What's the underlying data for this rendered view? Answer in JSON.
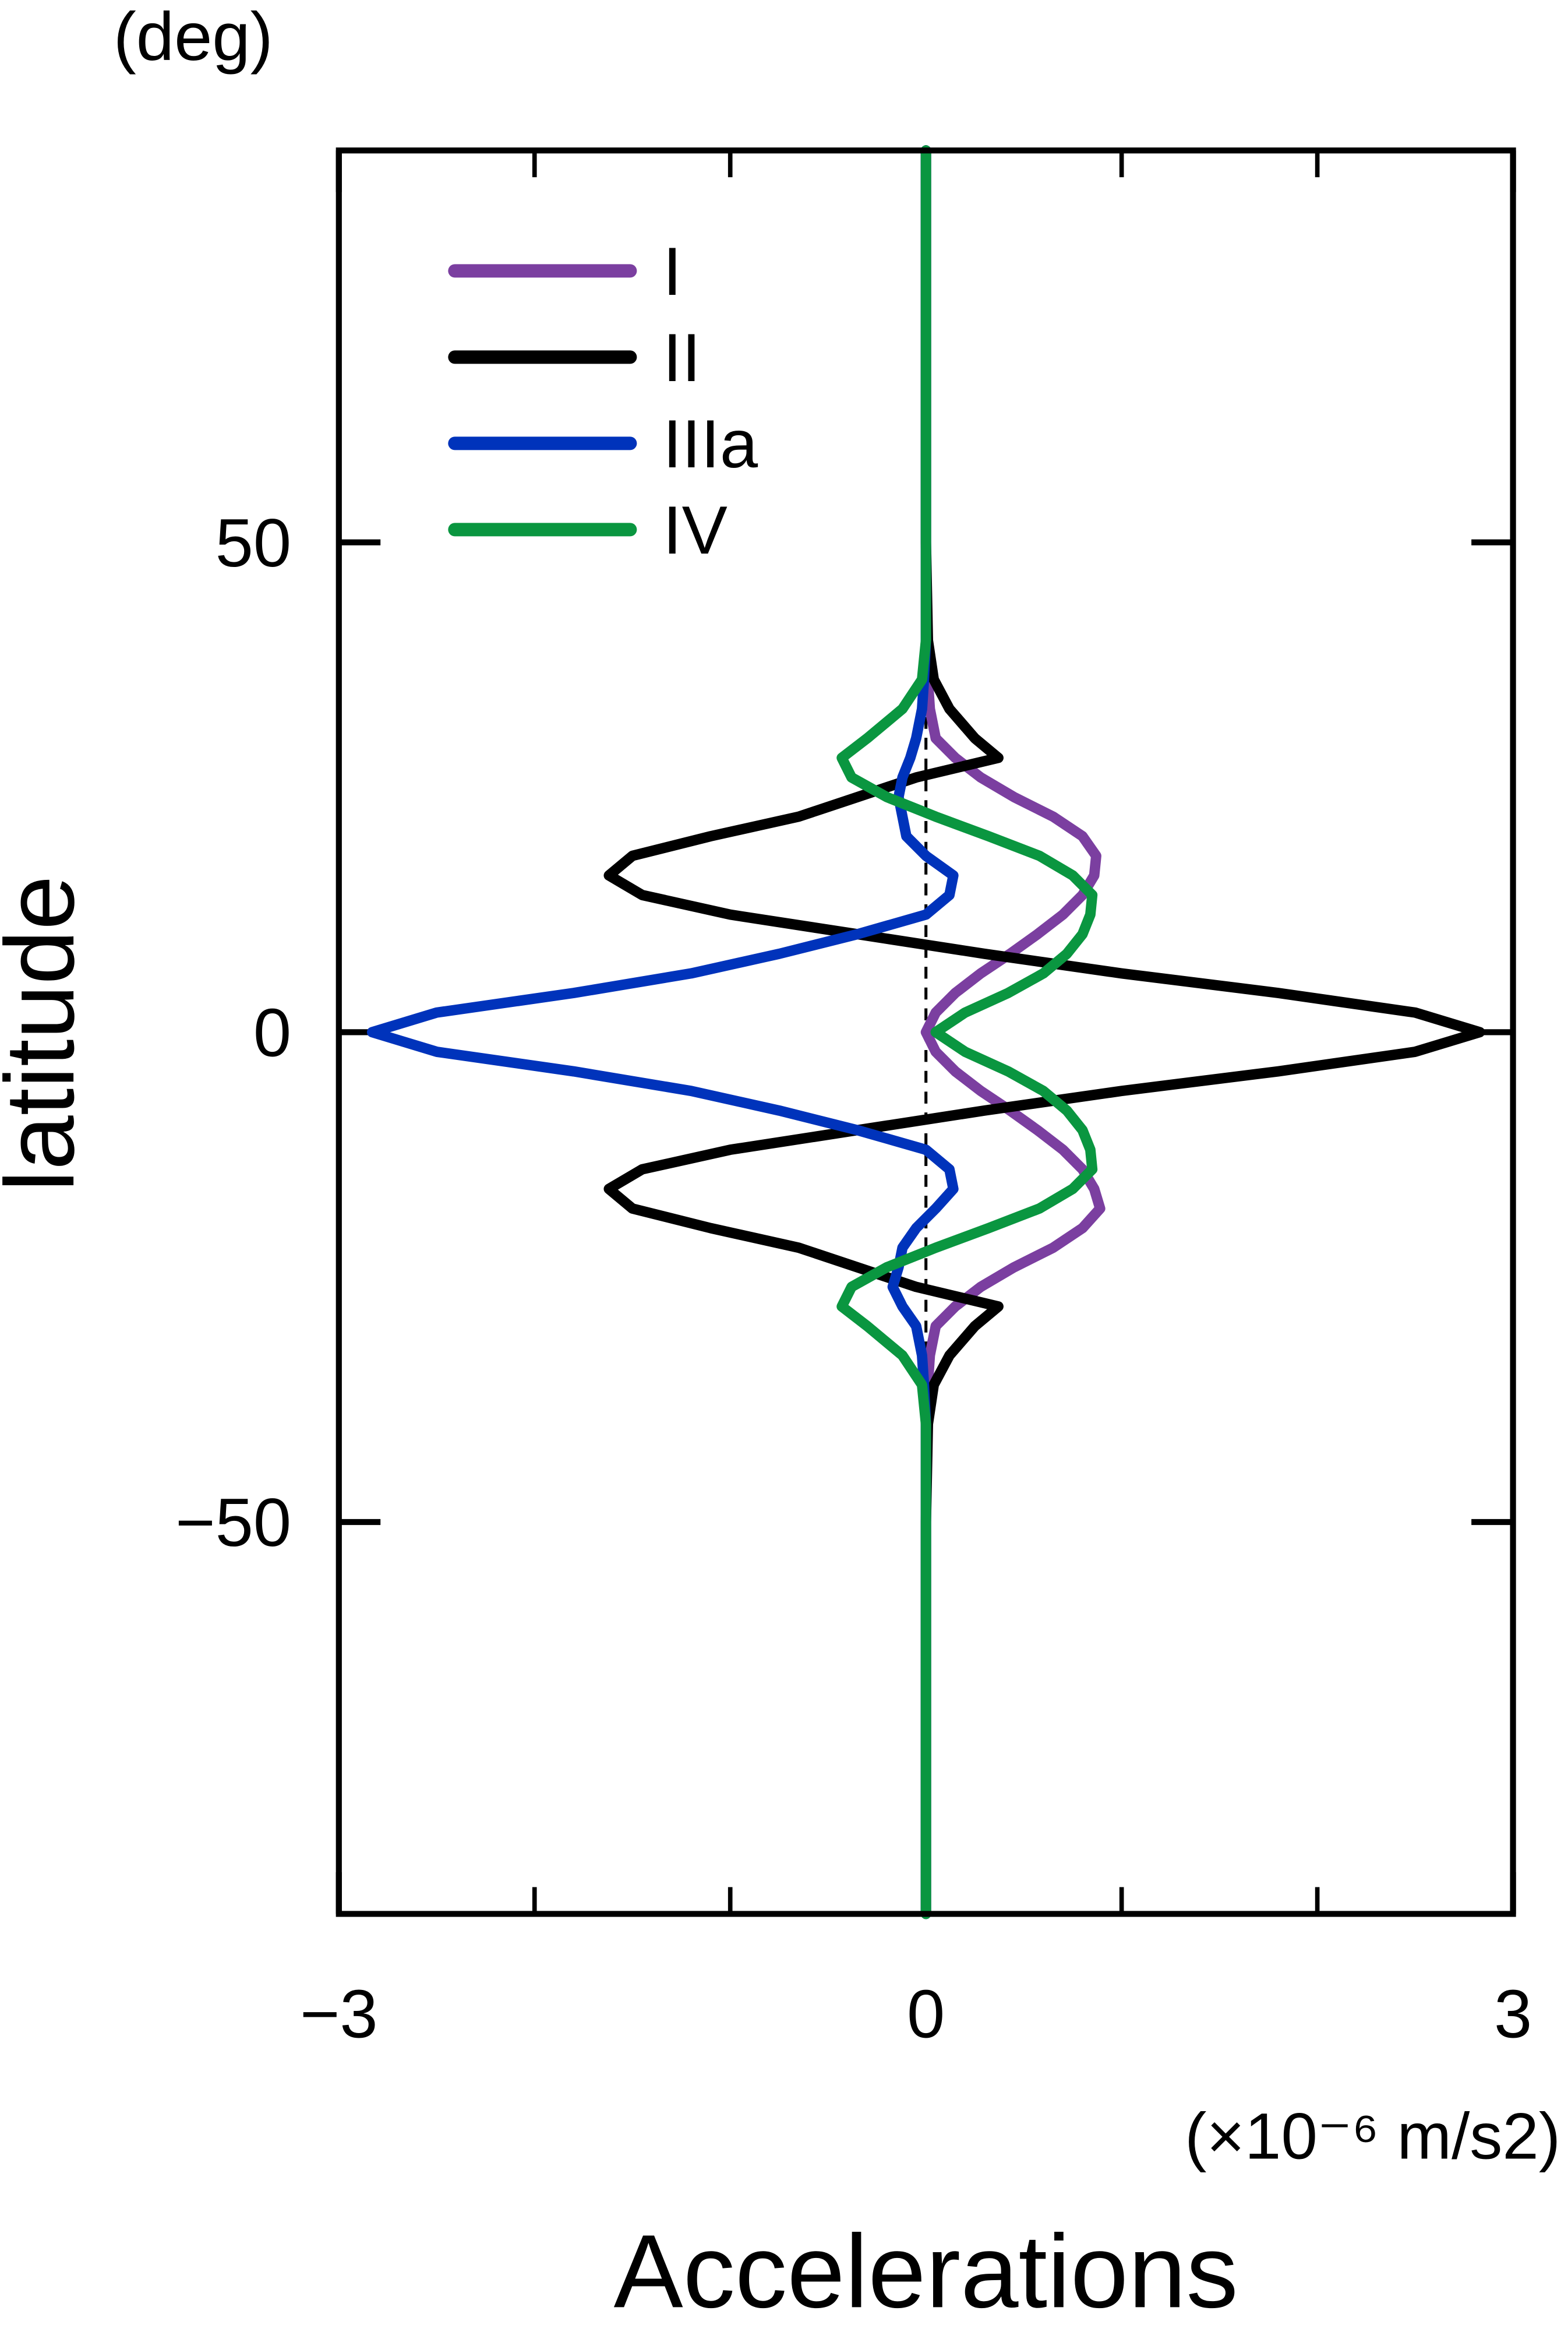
{
  "chart_data": {
    "type": "line",
    "orientation": "horizontal",
    "title_y_unit": "(deg)",
    "y_axis_label": "latitude",
    "x_axis_label": "Accelerations",
    "x_axis_unit": "(×10⁻⁶ m/s2)",
    "x": [
      -90,
      -50,
      -40,
      -36,
      -33,
      -30,
      -28,
      -26,
      -24,
      -22,
      -20,
      -18,
      -16,
      -14,
      -12,
      -10,
      -8,
      -6,
      -4,
      -2,
      0,
      2,
      4,
      6,
      8,
      10,
      12,
      14,
      16,
      18,
      20,
      22,
      24,
      26,
      28,
      30,
      33,
      36,
      40,
      50,
      90
    ],
    "xlim": [
      -90,
      90
    ],
    "xticks": [
      50,
      0,
      {
        "value": -50,
        "label": "−50"
      }
    ],
    "ylim": [
      -3,
      3
    ],
    "yticks": [
      {
        "value": -3,
        "label": "−3"
      },
      0,
      3
    ],
    "minor_yticks": [
      -2,
      -1,
      1,
      2
    ],
    "series": [
      {
        "name": "I",
        "color": "#7b3fa0",
        "values": [
          0,
          0,
          0,
          0.01,
          0.02,
          0.05,
          0.15,
          0.28,
          0.45,
          0.65,
          0.8,
          0.89,
          0.86,
          0.8,
          0.7,
          0.57,
          0.43,
          0.28,
          0.15,
          0.05,
          0,
          0.05,
          0.15,
          0.28,
          0.43,
          0.57,
          0.7,
          0.8,
          0.86,
          0.87,
          0.8,
          0.65,
          0.45,
          0.28,
          0.15,
          0.05,
          0.02,
          0.01,
          0,
          0,
          0
        ]
      },
      {
        "name": "II",
        "color": "#000000",
        "values": [
          0,
          0,
          0.01,
          0.04,
          0.12,
          0.25,
          0.37,
          -0.05,
          -0.35,
          -0.65,
          -1.1,
          -1.5,
          -1.62,
          -1.45,
          -1.0,
          -0.35,
          0.3,
          1.0,
          1.8,
          2.5,
          2.83,
          2.5,
          1.8,
          1.0,
          0.3,
          -0.35,
          -1.0,
          -1.45,
          -1.62,
          -1.5,
          -1.1,
          -0.65,
          -0.35,
          -0.05,
          0.37,
          0.25,
          0.12,
          0.04,
          0.01,
          0,
          0
        ]
      },
      {
        "name": "IIIa",
        "color": "#0033bb",
        "values": [
          0,
          0,
          0,
          -0.01,
          -0.02,
          -0.05,
          -0.12,
          -0.17,
          -0.14,
          -0.12,
          -0.05,
          0.05,
          0.14,
          0.12,
          0,
          -0.35,
          -0.75,
          -1.2,
          -1.8,
          -2.5,
          -2.83,
          -2.5,
          -1.8,
          -1.2,
          -0.75,
          -0.35,
          0,
          0.12,
          0.14,
          0,
          -0.1,
          -0.12,
          -0.14,
          -0.12,
          -0.08,
          -0.05,
          -0.02,
          -0.01,
          0,
          0,
          0
        ]
      },
      {
        "name": "IV",
        "color": "#0a9640",
        "values": [
          0,
          0,
          0,
          -0.02,
          -0.12,
          -0.3,
          -0.43,
          -0.38,
          -0.2,
          0.05,
          0.32,
          0.58,
          0.75,
          0.85,
          0.84,
          0.8,
          0.72,
          0.6,
          0.42,
          0.2,
          0.05,
          0.2,
          0.42,
          0.6,
          0.72,
          0.8,
          0.84,
          0.85,
          0.75,
          0.58,
          0.32,
          0.05,
          -0.2,
          -0.38,
          -0.43,
          -0.3,
          -0.12,
          -0.02,
          0,
          0,
          0
        ]
      }
    ]
  }
}
